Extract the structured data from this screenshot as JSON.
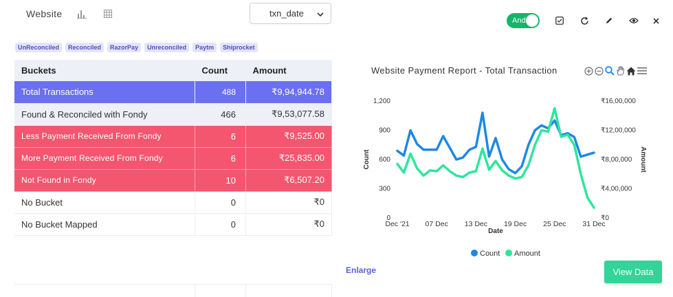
{
  "header": {
    "title": "Website",
    "date_field": "txn_date",
    "toggle_label": "And"
  },
  "tags": [
    "UnReconciled",
    "Reconciled",
    "RazorPay",
    "Unreconciled",
    "Paytm",
    "Shiprocket"
  ],
  "table": {
    "headers": [
      "Buckets",
      "Count",
      "Amount"
    ],
    "rows": [
      {
        "bucket": "Total Transactions",
        "count": "488",
        "amount": "₹9,94,944.78"
      },
      {
        "bucket": "Found & Reconciled with Fondy",
        "count": "466",
        "amount": "₹9,53,077.58"
      },
      {
        "bucket": "Less Payment Received From Fondy",
        "count": "6",
        "amount": "₹9,525.00"
      },
      {
        "bucket": "More Payment Received From Fondy",
        "count": "6",
        "amount": "₹25,835.00"
      },
      {
        "bucket": "Not Found in Fondy",
        "count": "10",
        "amount": "₹6,507.20"
      },
      {
        "bucket": "No Bucket",
        "count": "0",
        "amount": "₹0"
      },
      {
        "bucket": "No Bucket Mapped",
        "count": "0",
        "amount": "₹0"
      }
    ]
  },
  "chart_title": "Website Payment Report - Total Transaction",
  "enlarge_label": "Enlarge",
  "view_data_label": "View Data",
  "colors": {
    "count": "#1e88e5",
    "amount": "#2ee59d",
    "total_row": "#6a70ef",
    "red_row": "#f4566f",
    "accent": "#34d399"
  },
  "chart_data": {
    "type": "line",
    "xlabel": "Date",
    "ylabel": "Count",
    "y2label": "Amount",
    "x_ticks": [
      "Dec '21",
      "07 Dec",
      "13 Dec",
      "19 Dec",
      "25 Dec",
      "31 Dec"
    ],
    "y_ticks": [
      "0",
      "300",
      "600",
      "900",
      "1,200"
    ],
    "y2_ticks": [
      "₹0",
      "₹4,00,000",
      "₹8,00,000",
      "₹12,00,000",
      "₹16,00,000"
    ],
    "ylim": [
      0,
      1200
    ],
    "y2lim": [
      0,
      1600000
    ],
    "legend": "bottom",
    "series": [
      {
        "name": "Count",
        "axis": "left",
        "values": [
          690,
          640,
          900,
          760,
          700,
          700,
          700,
          840,
          720,
          600,
          620,
          700,
          730,
          1080,
          630,
          820,
          600,
          500,
          460,
          530,
          750,
          900,
          950,
          920,
          1000,
          850,
          870,
          830,
          630,
          650,
          670
        ]
      },
      {
        "name": "Amount",
        "axis": "right",
        "values": [
          740000,
          620000,
          880000,
          680000,
          580000,
          650000,
          640000,
          720000,
          640000,
          580000,
          560000,
          620000,
          640000,
          950000,
          660000,
          780000,
          650000,
          580000,
          540000,
          560000,
          720000,
          1000000,
          1200000,
          1180000,
          1500000,
          1110000,
          1140000,
          1000000,
          600000,
          280000,
          140000
        ]
      }
    ]
  }
}
